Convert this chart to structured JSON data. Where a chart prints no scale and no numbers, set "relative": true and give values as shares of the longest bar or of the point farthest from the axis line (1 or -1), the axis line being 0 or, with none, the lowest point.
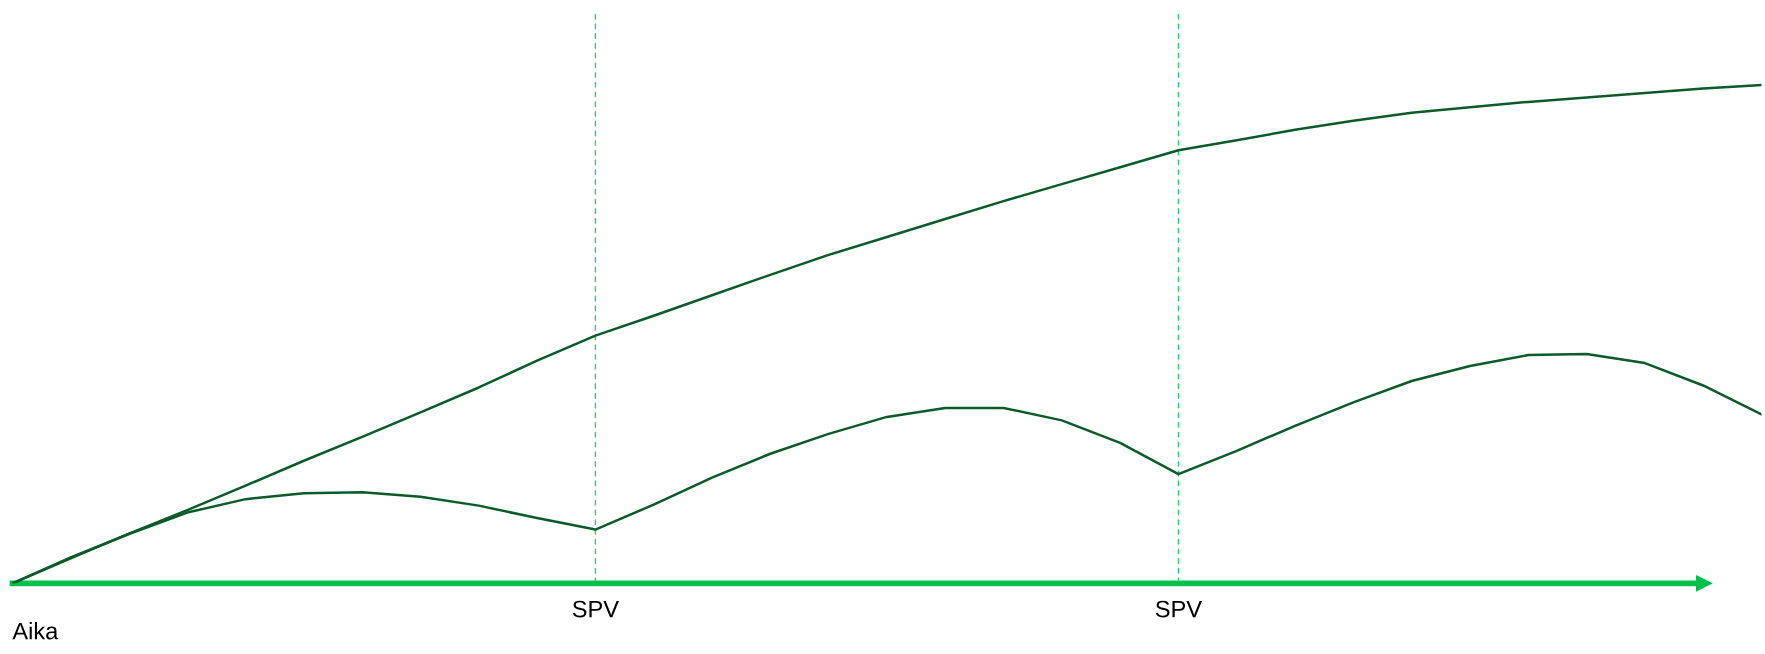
{
  "chart_data": {
    "type": "line",
    "relative": true,
    "xlabel": "Aika",
    "categories": [
      null,
      null,
      null,
      null,
      null,
      null,
      null,
      null,
      null,
      null,
      "SPV",
      null,
      null,
      null,
      null,
      null,
      null,
      null,
      null,
      null,
      "SPV",
      null,
      null,
      null,
      null,
      null,
      null,
      null,
      null,
      null,
      null
    ],
    "series": [
      {
        "color": "#0b5a2a",
        "values": [
          0,
          0.05,
          0.1,
          0.147,
          0.196,
          0.246,
          0.294,
          0.343,
          0.393,
          0.447,
          0.497,
          0.537,
          0.578,
          0.619,
          0.659,
          0.695,
          0.731,
          0.767,
          0.801,
          0.835,
          0.869,
          0.889,
          0.91,
          0.928,
          0.944,
          0.955,
          0.966,
          0.975,
          0.984,
          0.993,
          1.0
        ]
      },
      {
        "color": "#0b5a2a",
        "values": [
          0,
          0.052,
          0.099,
          0.142,
          0.169,
          0.181,
          0.183,
          0.174,
          0.156,
          0.131,
          0.108,
          0.158,
          0.212,
          0.26,
          0.3,
          0.334,
          0.352,
          0.352,
          0.327,
          0.282,
          0.219,
          0.266,
          0.316,
          0.363,
          0.406,
          0.436,
          0.458,
          0.46,
          0.442,
          0.397,
          0.339
        ]
      }
    ],
    "grid": "x"
  }
}
